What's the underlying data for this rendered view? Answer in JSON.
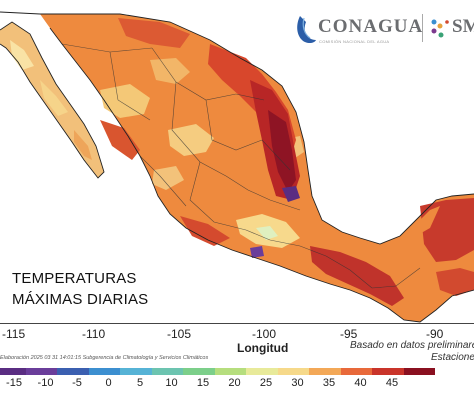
{
  "overlay": {
    "line1": "TEMPERATURAS",
    "line2": "MÁXIMAS DIARIAS"
  },
  "logo": {
    "conagua": "CONAGUA",
    "conagua_sub": "COMISIÓN NACIONAL DEL AGUA",
    "smn": "SM"
  },
  "axis": {
    "title": "Longitud",
    "ticks": [
      "-115",
      "-110",
      "-105",
      "-100",
      "-95",
      "-90"
    ]
  },
  "notes": {
    "based_on": "Basado en datos preliminares",
    "stations": "Estaciones",
    "credit": "Elaboración 2025 03 31 14:01:15 Subgerencia de Climatología y Servicios Climáticos"
  },
  "colorbar": {
    "labels": [
      "-15",
      "-10",
      "-5",
      "0",
      "5",
      "10",
      "15",
      "20",
      "25",
      "30",
      "35",
      "40",
      "45"
    ],
    "colors": [
      "#5a2d82",
      "#6a3d9a",
      "#3b5fb0",
      "#3c8fd0",
      "#56b3d6",
      "#6cc4b0",
      "#7ccf8a",
      "#b6de7e",
      "#e8ea9a",
      "#f6d98a",
      "#f3a857",
      "#e8693a",
      "#c9342a",
      "#8a1020"
    ]
  }
}
